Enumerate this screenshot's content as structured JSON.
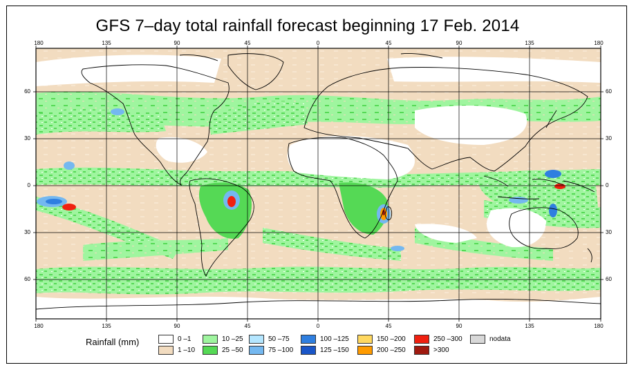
{
  "title": "GFS 7–day total rainfall forecast beginning 17 Feb. 2014",
  "axes": {
    "longitude_labels": [
      "180",
      "135",
      "90",
      "45",
      "0",
      "45",
      "90",
      "135",
      "180"
    ],
    "latitude_labels_left": [
      "60",
      "30",
      "0",
      "30",
      "60"
    ],
    "latitude_labels_right": [
      "60",
      "30",
      "0",
      "30",
      "60"
    ]
  },
  "legend": {
    "title": "Rainfall (mm)",
    "items": [
      {
        "label": "0 –1",
        "color": "#ffffff"
      },
      {
        "label": "1 –10",
        "color": "#f2dcc0"
      },
      {
        "label": "10 –25",
        "color": "#9ff59f"
      },
      {
        "label": "25 –50",
        "color": "#55d955"
      },
      {
        "label": "50 –75",
        "color": "#b4e6ff"
      },
      {
        "label": "75 –100",
        "color": "#74b8f0"
      },
      {
        "label": "100 –125",
        "color": "#2f7fe0"
      },
      {
        "label": "125 –150",
        "color": "#1a56c8"
      },
      {
        "label": "150 –200",
        "color": "#ffd860"
      },
      {
        "label": "200 –250",
        "color": "#ff9b00"
      },
      {
        "label": "250 –300",
        "color": "#f02010"
      },
      {
        "label": ">300",
        "color": "#a01a10"
      },
      {
        "label": "nodata",
        "color": "#d8d8d8"
      }
    ]
  }
}
